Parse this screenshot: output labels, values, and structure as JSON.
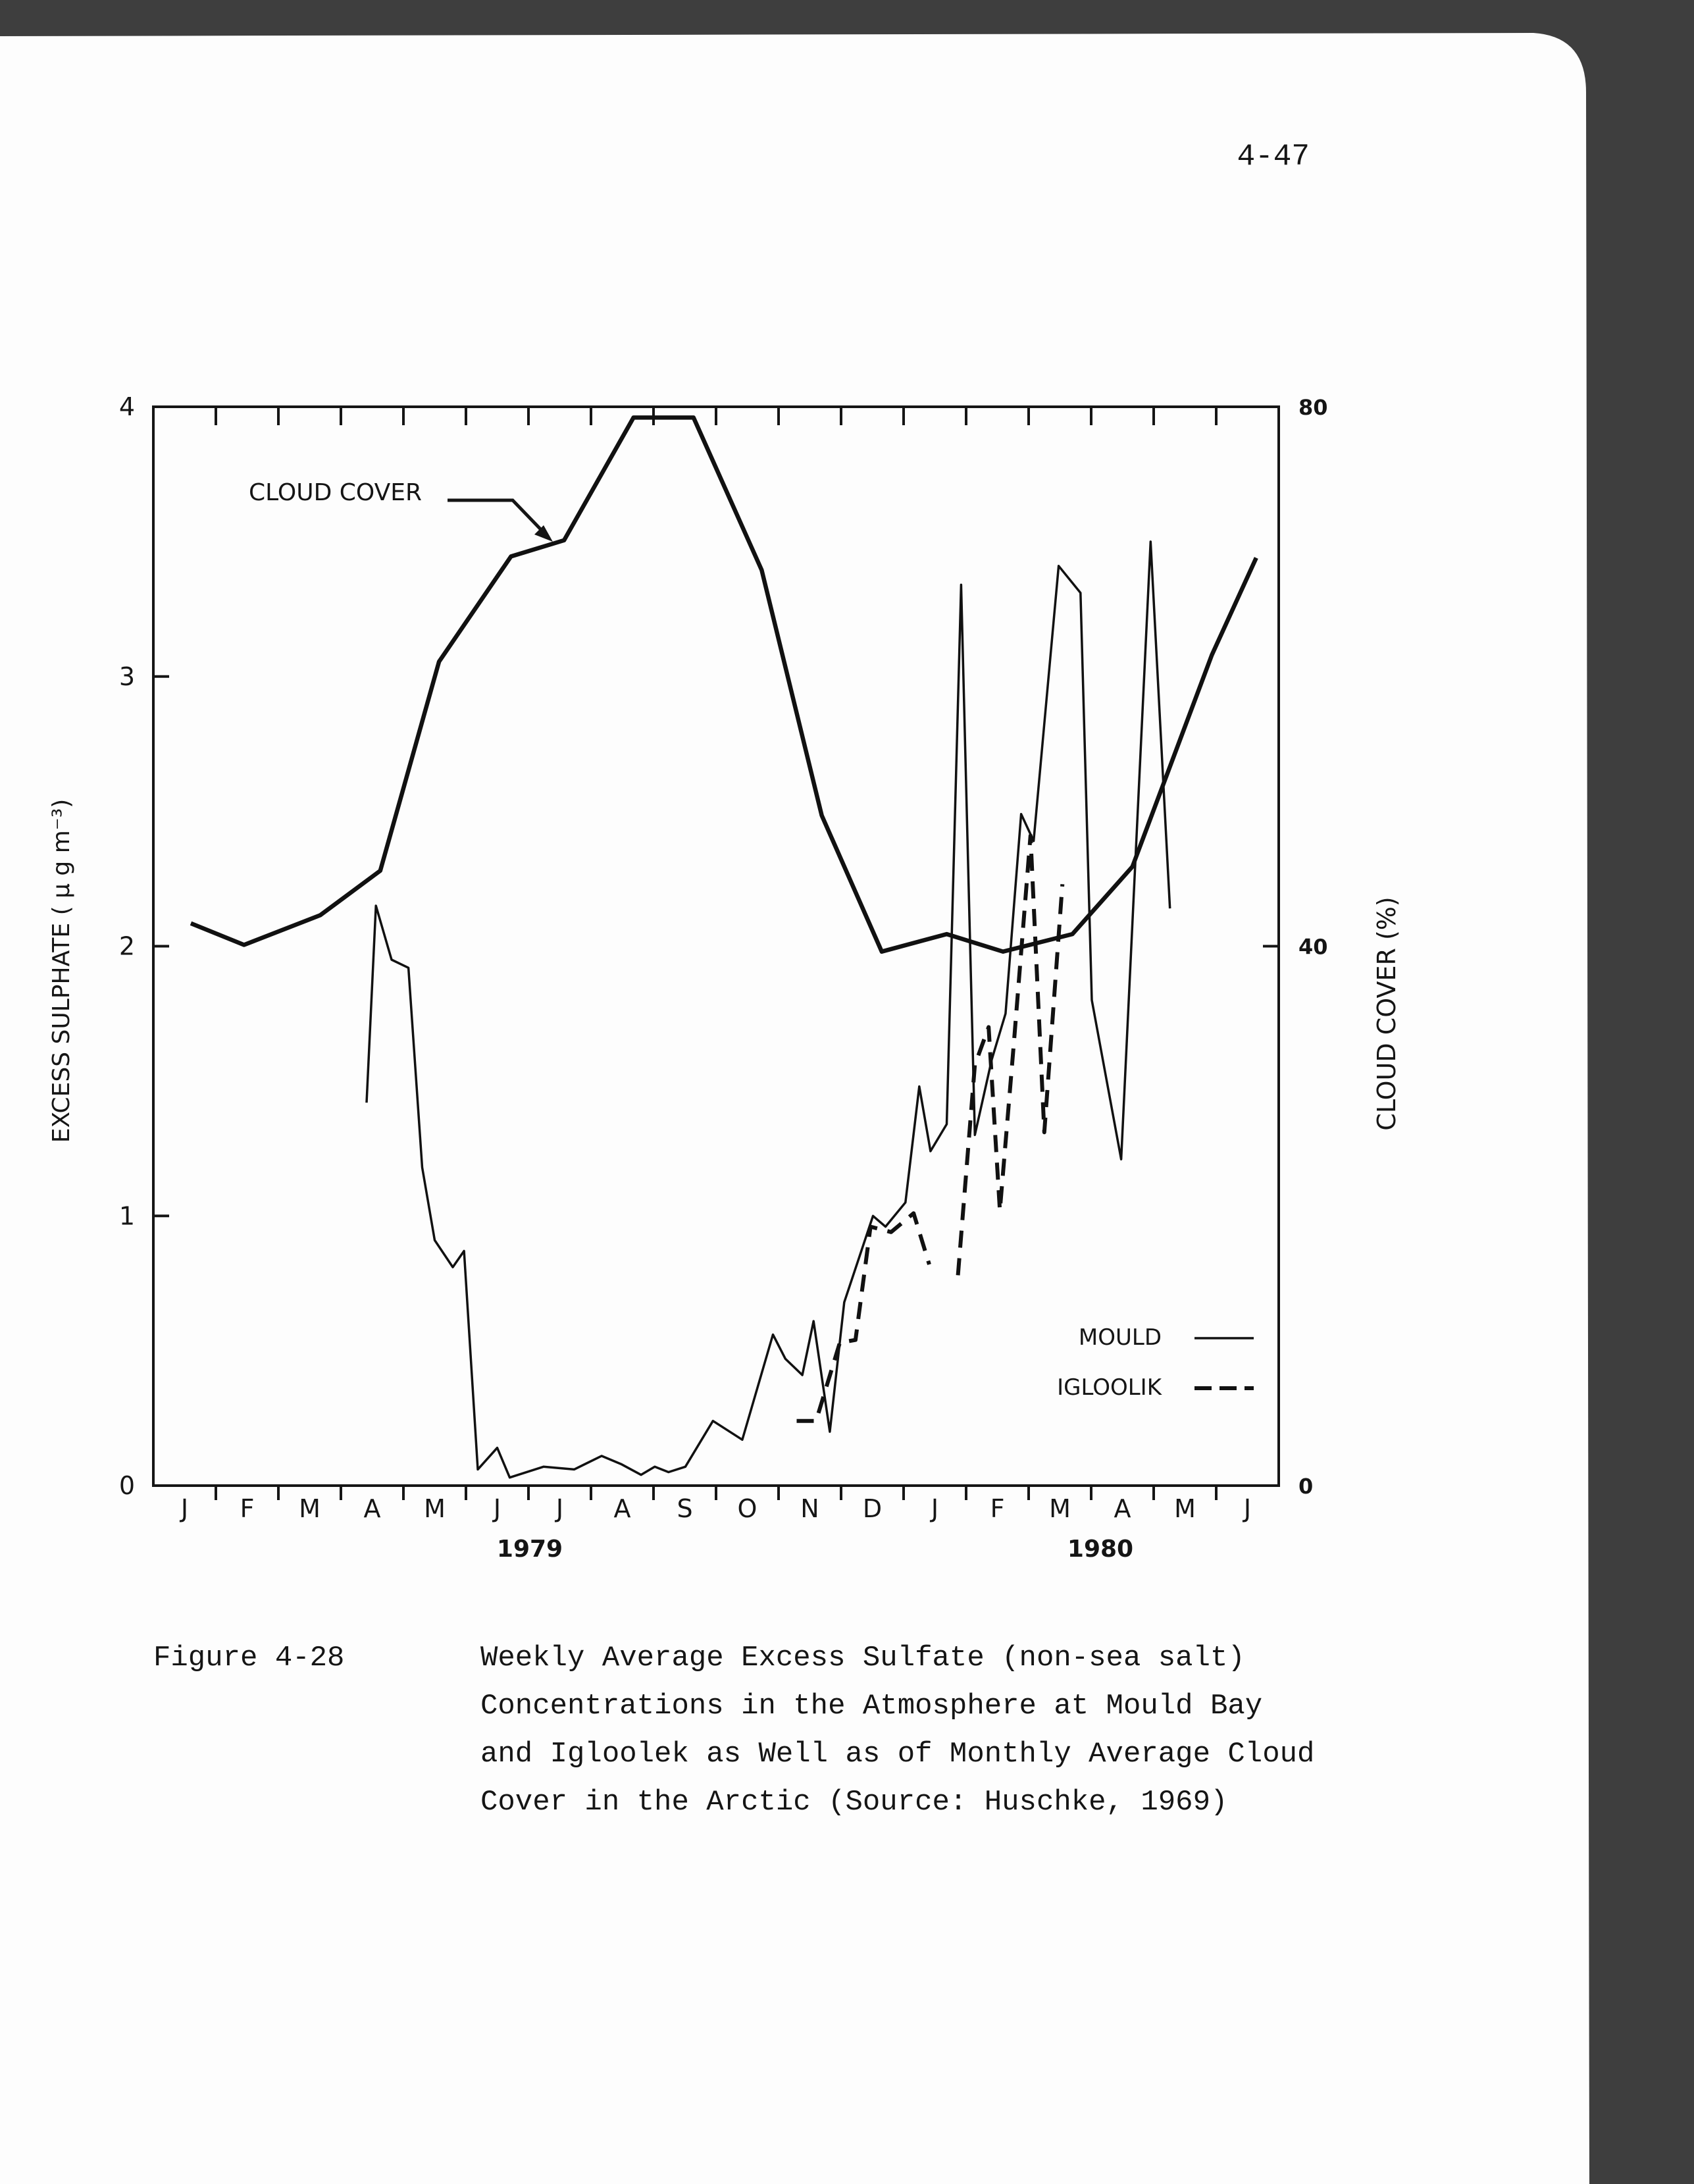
{
  "page_number": "4-47",
  "caption": {
    "label": "Figure 4-28",
    "lines": [
      "Weekly Average Excess Sulfate (non-sea salt)",
      "Concentrations in the Atmosphere at Mould Bay",
      "and Igloolek as Well as of Monthly Average Cloud",
      "Cover in the Arctic (Source:  Huschke, 1969)"
    ]
  },
  "chart_data": {
    "type": "line",
    "y_label": "EXCESS SULPHATE ( µ g m⁻³)",
    "y2_label": "CLOUD COVER  (%)",
    "years": [
      "1979",
      "1980"
    ],
    "xlim": [
      0,
      18
    ],
    "xticks": [
      {
        "value": 0.5,
        "label": "J"
      },
      {
        "value": 1.5,
        "label": "F"
      },
      {
        "value": 2.5,
        "label": "M"
      },
      {
        "value": 3.5,
        "label": "A"
      },
      {
        "value": 4.5,
        "label": "M"
      },
      {
        "value": 5.5,
        "label": "J"
      },
      {
        "value": 6.5,
        "label": "J"
      },
      {
        "value": 7.5,
        "label": "A"
      },
      {
        "value": 8.5,
        "label": "S"
      },
      {
        "value": 9.5,
        "label": "O"
      },
      {
        "value": 10.5,
        "label": "N"
      },
      {
        "value": 11.5,
        "label": "D"
      },
      {
        "value": 12.5,
        "label": "J"
      },
      {
        "value": 13.5,
        "label": "F"
      },
      {
        "value": 14.5,
        "label": "M"
      },
      {
        "value": 15.5,
        "label": "A"
      },
      {
        "value": 16.5,
        "label": "M"
      },
      {
        "value": 17.5,
        "label": "J"
      }
    ],
    "ylim": [
      0,
      4
    ],
    "yticks": [
      0,
      1,
      2,
      3,
      4
    ],
    "y2lim": [
      0,
      80
    ],
    "y2ticks": [
      0,
      40,
      80
    ],
    "legend": "lower right",
    "series": [
      {
        "name": "MOULD",
        "color": "#111111",
        "line_style": "solid",
        "axis": "y",
        "x": [
          3.41,
          3.56,
          3.81,
          4.08,
          4.3,
          4.5,
          4.79,
          4.97,
          5.19,
          5.5,
          5.7,
          6.24,
          6.73,
          7.17,
          7.48,
          7.8,
          8.02,
          8.24,
          8.51,
          8.95,
          9.42,
          9.91,
          10.11,
          10.38,
          10.56,
          10.82,
          11.05,
          11.51,
          11.71,
          12.03,
          12.25,
          12.43,
          12.69,
          12.92,
          13.14,
          13.41,
          13.63,
          13.88,
          14.08,
          14.48,
          14.83,
          15.01,
          15.48,
          15.95,
          16.26
        ],
        "values": [
          1.42,
          2.15,
          1.95,
          1.92,
          1.18,
          0.91,
          0.81,
          0.87,
          0.06,
          0.14,
          0.03,
          0.07,
          0.06,
          0.11,
          0.08,
          0.04,
          0.07,
          0.05,
          0.07,
          0.24,
          0.17,
          0.56,
          0.47,
          0.41,
          0.61,
          0.2,
          0.68,
          1.0,
          0.96,
          1.05,
          1.48,
          1.24,
          1.34,
          3.34,
          1.3,
          1.58,
          1.75,
          2.49,
          2.39,
          3.41,
          3.31,
          1.8,
          1.21,
          3.5,
          2.14
        ]
      },
      {
        "name": "IGLOOLIK",
        "color": "#111111",
        "line_style": "dashed",
        "axis": "y",
        "x": [
          10.29,
          10.6,
          10.98,
          11.23,
          11.47,
          11.8,
          12.16,
          12.41,
          12.64,
          12.87,
          13.14,
          13.36,
          13.54,
          13.76,
          14.03,
          14.25,
          14.54
        ],
        "values": [
          0.24,
          0.24,
          0.53,
          0.54,
          0.96,
          0.94,
          1.01,
          0.82,
          null,
          0.78,
          1.56,
          1.7,
          1.02,
          1.63,
          2.41,
          1.31,
          2.23
        ]
      },
      {
        "name": "CLOUD COVER",
        "color": "#111111",
        "line_style": "thick",
        "axis": "y2",
        "x": [
          0.6,
          1.45,
          2.67,
          3.63,
          4.57,
          5.72,
          6.57,
          7.68,
          8.64,
          9.73,
          10.69,
          11.65,
          12.69,
          13.59,
          14.7,
          15.66,
          16.93,
          17.64
        ],
        "values": [
          41.7,
          40.1,
          42.3,
          45.6,
          61.1,
          68.9,
          70.1,
          79.2,
          79.2,
          67.9,
          49.7,
          39.6,
          40.9,
          39.6,
          40.9,
          45.9,
          61.6,
          68.8
        ]
      }
    ]
  }
}
